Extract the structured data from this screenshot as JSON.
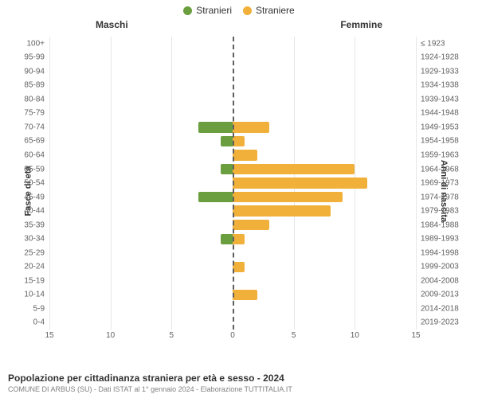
{
  "chart": {
    "type": "population-pyramid",
    "legend": {
      "male": {
        "label": "Stranieri",
        "color": "#6a9e3f"
      },
      "female": {
        "label": "Straniere",
        "color": "#f0b03a"
      }
    },
    "side_headers": {
      "left": "Maschi",
      "right": "Femmine"
    },
    "y_left_title": "Fasce di età",
    "y_right_title": "Anni di nascita",
    "xmax": 15,
    "x_ticks": [
      15,
      10,
      5,
      0,
      5,
      10,
      15
    ],
    "grid_color": "#e6e6e6",
    "zero_line_color": "#606060",
    "background_color": "#ffffff",
    "label_color": "#606060",
    "label_fontsize": 10,
    "rows": [
      {
        "age": "100+",
        "birth": "≤ 1923",
        "m": 0,
        "f": 0
      },
      {
        "age": "95-99",
        "birth": "1924-1928",
        "m": 0,
        "f": 0
      },
      {
        "age": "90-94",
        "birth": "1929-1933",
        "m": 0,
        "f": 0
      },
      {
        "age": "85-89",
        "birth": "1934-1938",
        "m": 0,
        "f": 0
      },
      {
        "age": "80-84",
        "birth": "1939-1943",
        "m": 0,
        "f": 0
      },
      {
        "age": "75-79",
        "birth": "1944-1948",
        "m": 0,
        "f": 0
      },
      {
        "age": "70-74",
        "birth": "1949-1953",
        "m": 2.8,
        "f": 3.0
      },
      {
        "age": "65-69",
        "birth": "1954-1958",
        "m": 1.0,
        "f": 1.0
      },
      {
        "age": "60-64",
        "birth": "1959-1963",
        "m": 0,
        "f": 2.0
      },
      {
        "age": "55-59",
        "birth": "1964-1968",
        "m": 1.0,
        "f": 10.0
      },
      {
        "age": "50-54",
        "birth": "1969-1973",
        "m": 0,
        "f": 11.0
      },
      {
        "age": "45-49",
        "birth": "1974-1978",
        "m": 2.8,
        "f": 9.0
      },
      {
        "age": "40-44",
        "birth": "1979-1983",
        "m": 0,
        "f": 8.0
      },
      {
        "age": "35-39",
        "birth": "1984-1988",
        "m": 0,
        "f": 3.0
      },
      {
        "age": "30-34",
        "birth": "1989-1993",
        "m": 1.0,
        "f": 1.0
      },
      {
        "age": "25-29",
        "birth": "1994-1998",
        "m": 0,
        "f": 0
      },
      {
        "age": "20-24",
        "birth": "1999-2003",
        "m": 0,
        "f": 1.0
      },
      {
        "age": "15-19",
        "birth": "2004-2008",
        "m": 0,
        "f": 0
      },
      {
        "age": "10-14",
        "birth": "2009-2013",
        "m": 0,
        "f": 2.0
      },
      {
        "age": "5-9",
        "birth": "2014-2018",
        "m": 0,
        "f": 0
      },
      {
        "age": "0-4",
        "birth": "2019-2023",
        "m": 0,
        "f": 0
      }
    ]
  },
  "footer": {
    "title": "Popolazione per cittadinanza straniera per età e sesso - 2024",
    "subtitle": "COMUNE DI ARBUS (SU) - Dati ISTAT al 1° gennaio 2024 - Elaborazione TUTTITALIA.IT"
  }
}
